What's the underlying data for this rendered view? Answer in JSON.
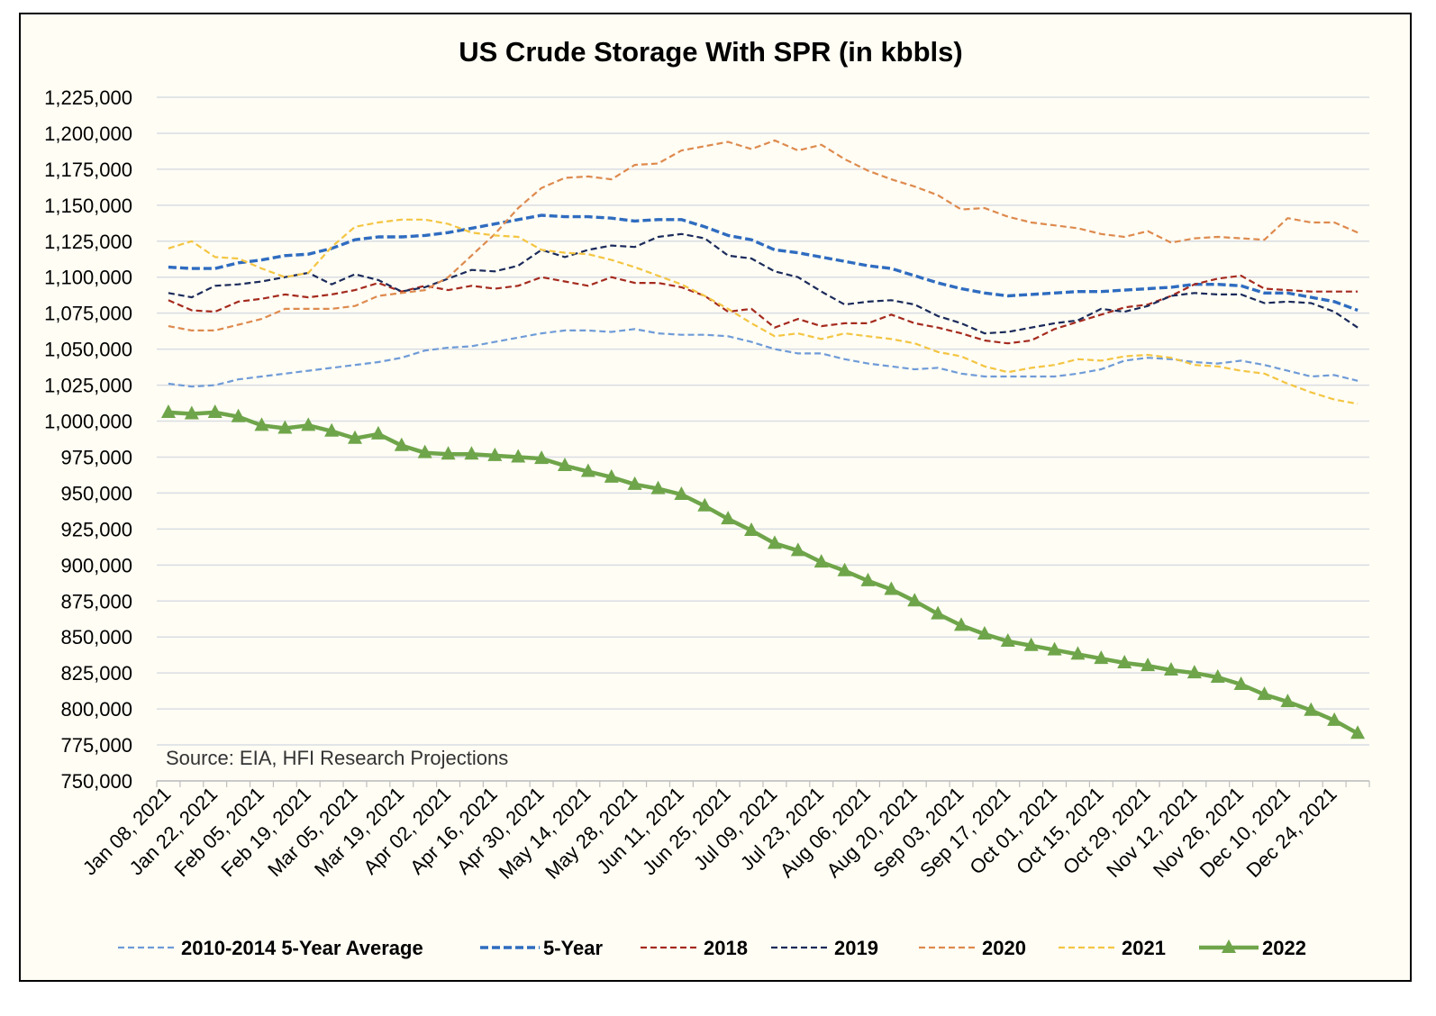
{
  "chart_data": {
    "type": "line",
    "title": "US Crude Storage With SPR (in kbbls)",
    "annotation": "Source: EIA, HFI Research Projections",
    "xlabel": "",
    "ylabel": "",
    "ylim": [
      750000,
      1225000
    ],
    "yticks": [
      750000,
      775000,
      800000,
      825000,
      850000,
      875000,
      900000,
      925000,
      950000,
      975000,
      1000000,
      1025000,
      1050000,
      1075000,
      1100000,
      1125000,
      1150000,
      1175000,
      1200000,
      1225000
    ],
    "ytick_labels": [
      "750,000",
      "775,000",
      "800,000",
      "825,000",
      "850,000",
      "875,000",
      "900,000",
      "925,000",
      "950,000",
      "975,000",
      "1,000,000",
      "1,025,000",
      "1,050,000",
      "1,075,000",
      "1,100,000",
      "1,125,000",
      "1,150,000",
      "1,175,000",
      "1,200,000",
      "1,225,000"
    ],
    "x_tick_labels": [
      "Jan 08, 2021",
      "Jan 22, 2021",
      "Feb 05, 2021",
      "Feb 19, 2021",
      "Mar 05, 2021",
      "Mar 19, 2021",
      "Apr 02, 2021",
      "Apr 16, 2021",
      "Apr 30, 2021",
      "May 14, 2021",
      "May 28, 2021",
      "Jun 11, 2021",
      "Jun 25, 2021",
      "Jul 09, 2021",
      "Jul 23, 2021",
      "Aug 06, 2021",
      "Aug 20, 2021",
      "Sep 03, 2021",
      "Sep 17, 2021",
      "Oct 01, 2021",
      "Oct 15, 2021",
      "Oct 29, 2021",
      "Nov 12, 2021",
      "Nov 26, 2021",
      "Dec 10, 2021",
      "Dec 24, 2021"
    ],
    "grid": true,
    "legend_position": "bottom",
    "series": [
      {
        "name": "2010-2014 5-Year Average",
        "color": "#6f9bd8",
        "style": "dashed",
        "values": [
          1026000,
          1024000,
          1025000,
          1029000,
          1031000,
          1033000,
          1035000,
          1037000,
          1039000,
          1041000,
          1044000,
          1049000,
          1051000,
          1052000,
          1055000,
          1058000,
          1061000,
          1063000,
          1063000,
          1062000,
          1064000,
          1061000,
          1060000,
          1060000,
          1059000,
          1055000,
          1050000,
          1047000,
          1047000,
          1043000,
          1040000,
          1038000,
          1036000,
          1037000,
          1033000,
          1031000,
          1031000,
          1031000,
          1031000,
          1033000,
          1036000,
          1042000,
          1044000,
          1043000,
          1041000,
          1040000,
          1042000,
          1039000,
          1035000,
          1031000,
          1032000,
          1028000
        ]
      },
      {
        "name": "5-Year",
        "color": "#2f6cc0",
        "style": "dashed-bold",
        "values": [
          1107000,
          1106000,
          1106000,
          1110000,
          1112000,
          1115000,
          1116000,
          1120000,
          1126000,
          1128000,
          1128000,
          1129000,
          1131000,
          1134000,
          1137000,
          1140000,
          1143000,
          1142000,
          1142000,
          1141000,
          1139000,
          1140000,
          1140000,
          1135000,
          1129000,
          1126000,
          1119000,
          1117000,
          1114000,
          1111000,
          1108000,
          1106000,
          1101000,
          1096000,
          1092000,
          1089000,
          1087000,
          1088000,
          1089000,
          1090000,
          1090000,
          1091000,
          1092000,
          1093000,
          1095000,
          1095000,
          1094000,
          1089000,
          1089000,
          1086000,
          1083000,
          1077000
        ]
      },
      {
        "name": "2018",
        "color": "#a52a1e",
        "style": "dashed",
        "values": [
          1084000,
          1077000,
          1076000,
          1083000,
          1085000,
          1088000,
          1086000,
          1088000,
          1091000,
          1096000,
          1090000,
          1094000,
          1091000,
          1094000,
          1092000,
          1094000,
          1100000,
          1097000,
          1094000,
          1100000,
          1096000,
          1096000,
          1093000,
          1087000,
          1076000,
          1078000,
          1065000,
          1071000,
          1066000,
          1068000,
          1068000,
          1074000,
          1068000,
          1065000,
          1061000,
          1056000,
          1054000,
          1056000,
          1064000,
          1069000,
          1074000,
          1079000,
          1081000,
          1087000,
          1095000,
          1099000,
          1101000,
          1092000,
          1091000,
          1090000,
          1090000,
          1090000
        ]
      },
      {
        "name": "2019",
        "color": "#1a2a5a",
        "style": "dashed",
        "values": [
          1089000,
          1086000,
          1094000,
          1095000,
          1097000,
          1100000,
          1103000,
          1095000,
          1102000,
          1098000,
          1090000,
          1093000,
          1099000,
          1105000,
          1104000,
          1108000,
          1119000,
          1114000,
          1119000,
          1122000,
          1121000,
          1128000,
          1130000,
          1127000,
          1115000,
          1113000,
          1104000,
          1100000,
          1090000,
          1081000,
          1083000,
          1084000,
          1081000,
          1073000,
          1068000,
          1061000,
          1062000,
          1065000,
          1068000,
          1070000,
          1078000,
          1076000,
          1080000,
          1087000,
          1089000,
          1088000,
          1088000,
          1082000,
          1083000,
          1082000,
          1076000,
          1065000
        ]
      },
      {
        "name": "2020",
        "color": "#de8a4e",
        "style": "dashed",
        "values": [
          1066000,
          1063000,
          1063000,
          1067000,
          1071000,
          1078000,
          1078000,
          1078000,
          1080000,
          1087000,
          1089000,
          1091000,
          1100000,
          1115000,
          1130000,
          1148000,
          1162000,
          1169000,
          1170000,
          1168000,
          1178000,
          1179000,
          1188000,
          1191000,
          1194000,
          1189000,
          1195000,
          1188000,
          1192000,
          1182000,
          1174000,
          1168000,
          1163000,
          1157000,
          1147000,
          1148000,
          1142000,
          1138000,
          1136000,
          1134000,
          1130000,
          1128000,
          1132000,
          1124000,
          1127000,
          1128000,
          1127000,
          1126000,
          1141000,
          1138000,
          1138000,
          1131000
        ]
      },
      {
        "name": "2021",
        "color": "#f4c542",
        "style": "dashed",
        "values": [
          1120000,
          1125000,
          1114000,
          1113000,
          1106000,
          1100000,
          1103000,
          1121000,
          1135000,
          1138000,
          1140000,
          1140000,
          1137000,
          1131000,
          1129000,
          1128000,
          1119000,
          1117000,
          1116000,
          1112000,
          1107000,
          1101000,
          1095000,
          1087000,
          1078000,
          1068000,
          1059000,
          1061000,
          1057000,
          1061000,
          1059000,
          1057000,
          1054000,
          1048000,
          1045000,
          1038000,
          1034000,
          1037000,
          1039000,
          1043000,
          1042000,
          1045000,
          1046000,
          1044000,
          1039000,
          1038000,
          1035000,
          1033000,
          1026000,
          1020000,
          1015000,
          1012000
        ]
      },
      {
        "name": "2022",
        "color": "#6fa54a",
        "style": "solid-triangles",
        "values": [
          1006000,
          1005000,
          1006000,
          1003000,
          997000,
          995000,
          997000,
          993000,
          988000,
          991000,
          983000,
          978000,
          977000,
          977000,
          976000,
          975000,
          974000,
          969000,
          965000,
          961000,
          956000,
          953000,
          949000,
          941000,
          932000,
          924000,
          915000,
          910000,
          902000,
          896000,
          889000,
          883000,
          875000,
          866000,
          858000,
          852000,
          847000,
          844000,
          841000,
          838000,
          835000,
          832000,
          830000,
          827000,
          825000,
          822000,
          817000,
          810000,
          805000,
          799000,
          792000,
          783000
        ]
      }
    ]
  }
}
